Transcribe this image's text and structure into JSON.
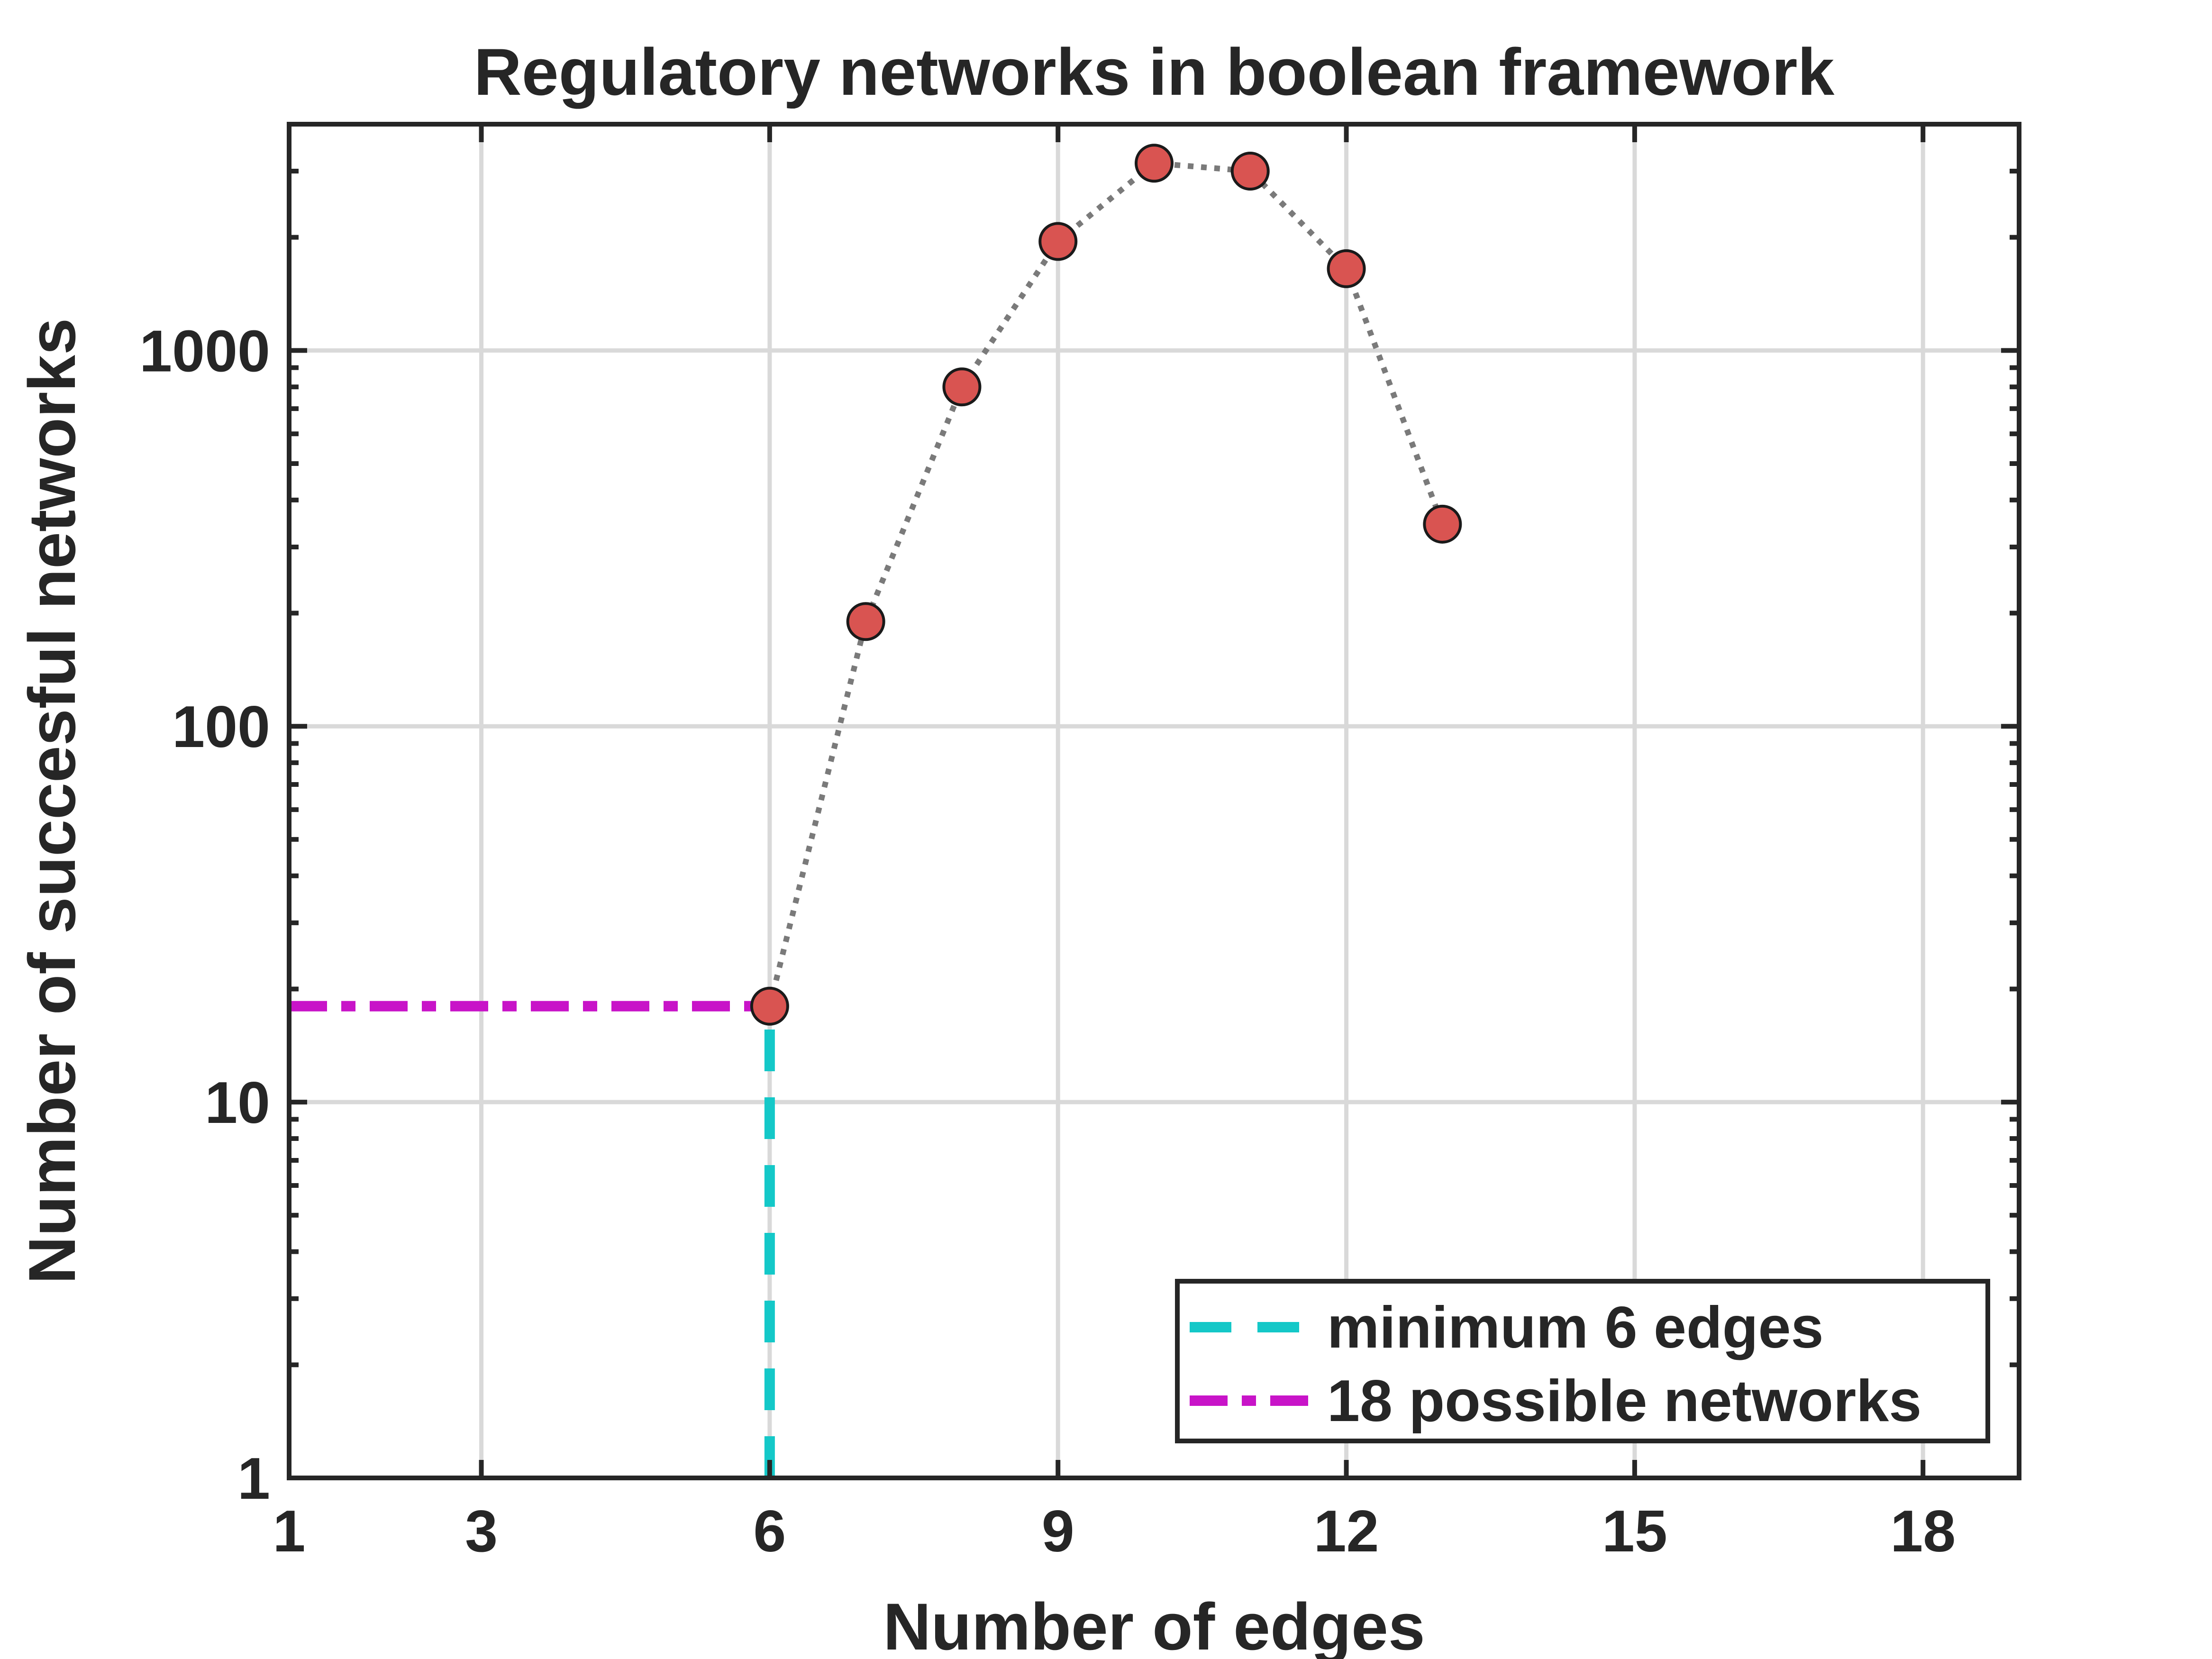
{
  "chart_data": {
    "type": "scatter",
    "title": "Regulatory networks in boolean framework",
    "xlabel": "Number of edges",
    "ylabel": "Number of succesful networks",
    "xlim": [
      1,
      19
    ],
    "ylim": [
      1,
      4000
    ],
    "yscale": "log",
    "xticks": [
      1,
      3,
      6,
      9,
      12,
      15,
      18
    ],
    "yticks": [
      1,
      10,
      100,
      1000
    ],
    "grid": true,
    "legend_position": "bottom-right",
    "series": [
      {
        "x": [
          6,
          7,
          8,
          9,
          10,
          11,
          12,
          13
        ],
        "y": [
          18,
          190,
          800,
          1950,
          3150,
          3000,
          1650,
          345
        ],
        "marker_color": "#d95451",
        "line_color": "#7a7a7a",
        "line_style": "dotted"
      }
    ],
    "reference_lines": [
      {
        "name": "minimum 6 edges",
        "orientation": "vertical",
        "x": 6,
        "y_range": [
          1,
          18
        ],
        "color": "#14c8c8",
        "line_style": "dashed"
      },
      {
        "name": "18 possible networks",
        "orientation": "horizontal",
        "y": 18,
        "x_range": [
          1,
          6
        ],
        "color": "#c814c8",
        "line_style": "dash-dot"
      }
    ]
  }
}
